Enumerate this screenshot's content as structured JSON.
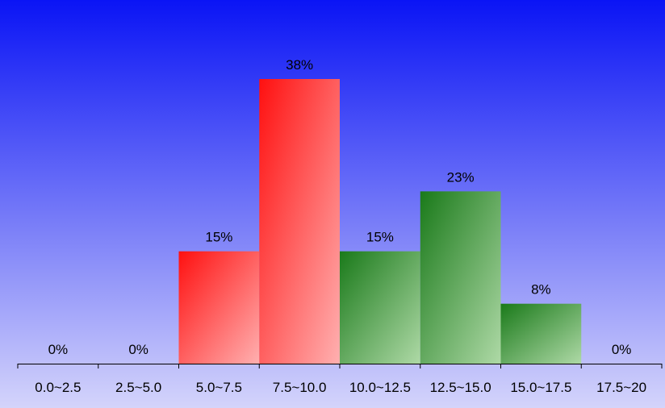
{
  "chart_data": {
    "type": "bar",
    "categories": [
      "0.0~2.5",
      "2.5~5.0",
      "5.0~7.5",
      "7.5~10.0",
      "10.0~12.5",
      "12.5~15.0",
      "15.0~17.5",
      "17.5~20"
    ],
    "values": [
      0,
      0,
      15,
      38,
      15,
      23,
      8,
      0
    ],
    "value_labels": [
      "0%",
      "0%",
      "15%",
      "38%",
      "15%",
      "23%",
      "8%",
      "0%"
    ],
    "bar_color_groups": [
      "red",
      "red",
      "red",
      "red",
      "green",
      "green",
      "green",
      "green"
    ],
    "ylim": [
      0,
      50
    ],
    "grid": false,
    "legend": "none",
    "colors": {
      "background_top": "#0a14f5",
      "background_bottom": "#d4d4fb",
      "red_start": "#ff1010",
      "red_end": "#ffb0b0",
      "green_start": "#1a7a1a",
      "green_end": "#aed9a6",
      "axis": "#000000"
    }
  }
}
